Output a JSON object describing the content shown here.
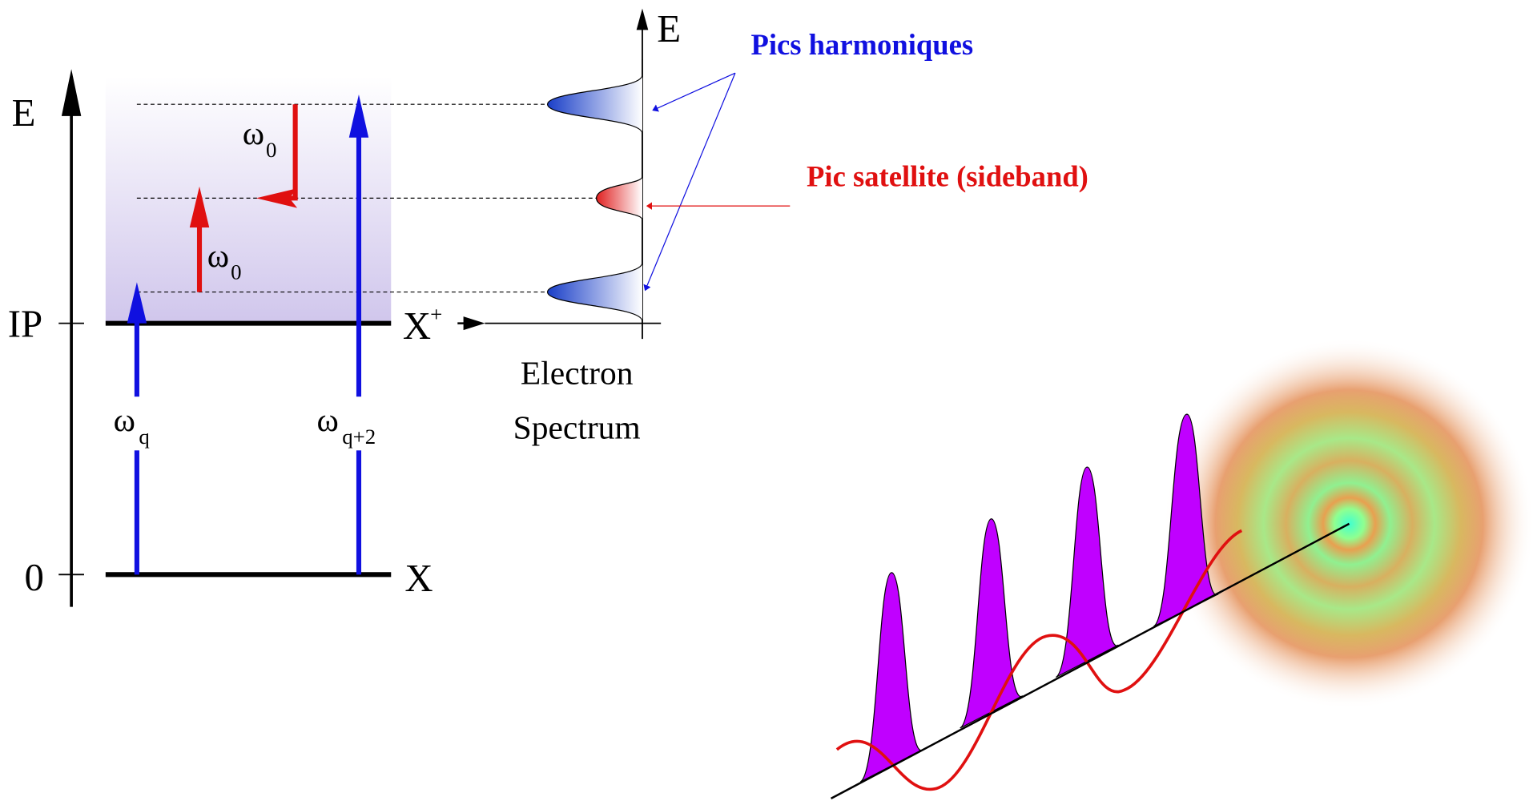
{
  "energy_diagram": {
    "axis_label": "E",
    "levels": {
      "ionization": "IP",
      "ground": "0"
    },
    "states": {
      "ion": {
        "symbol": "X",
        "sup": "+"
      },
      "neutral": "X"
    },
    "transitions": [
      {
        "symbol": "ω",
        "sub": "0"
      },
      {
        "symbol": "ω",
        "sub": "0"
      },
      {
        "symbol": "ω",
        "sub": "q"
      },
      {
        "symbol": "ω",
        "sub": "q+2"
      }
    ]
  },
  "spectrum": {
    "axis_label": "E",
    "title_lines": [
      "Electron",
      "Spectrum"
    ]
  },
  "annotations": {
    "harmonics": "Pics harmoniques",
    "sideband": "Pic satellite (sideband)"
  }
}
